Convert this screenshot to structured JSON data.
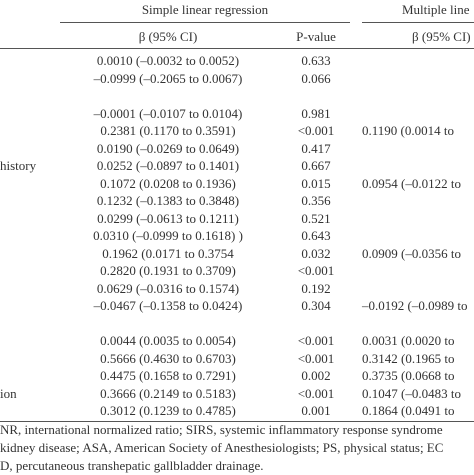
{
  "header": {
    "group1": "Simple linear regression",
    "group2": "Multiple line",
    "col1": "β (95% CI)",
    "col2": "P-value",
    "col3": "β (95% CI)"
  },
  "groups": [
    {
      "rows": [
        [
          null,
          "0.0010 (–0.0032 to 0.0052)",
          "0.633",
          null
        ],
        [
          null,
          "–0.0999 (–0.2065 to 0.0067)",
          "0.066",
          null
        ]
      ]
    },
    {
      "rows": [
        [
          null,
          "–0.0001 (–0.0107 to 0.0104)",
          "0.981",
          null
        ],
        [
          null,
          "0.2381 (0.1170 to 0.3591)",
          "<0.001",
          "0.1190 (0.0014 to"
        ],
        [
          null,
          "0.0190 (–0.0269 to 0.0649)",
          "0.417",
          null
        ],
        [
          "history",
          "0.0252 (–0.0897 to 0.1401)",
          "0.667",
          null
        ],
        [
          null,
          "0.1072 (0.0208 to 0.1936)",
          "0.015",
          "0.0954 (–0.0122 to"
        ],
        [
          null,
          "0.1232 (–0.1383 to 0.3848)",
          "0.356",
          null
        ],
        [
          null,
          "0.0299 (–0.0613 to 0.1211)",
          "0.521",
          null
        ],
        [
          null,
          "0.0310 (–0.0999 to 0.1618) )",
          "0.643",
          null
        ],
        [
          null,
          "0.1962 (0.0171 to 0.3754",
          "0.032",
          "0.0909 (–0.0356 to"
        ],
        [
          null,
          "0.2820 (0.1931 to 0.3709)",
          "<0.001",
          null
        ],
        [
          null,
          "0.0629 (–0.0316 to 0.1574)",
          "0.192",
          null
        ],
        [
          null,
          "–0.0467 (–0.1358 to 0.0424)",
          "0.304",
          "–0.0192 (–0.0989 to"
        ]
      ]
    },
    {
      "rows": [
        [
          null,
          "0.0044 (0.0035 to 0.0054)",
          "<0.001",
          "0.0031 (0.0020 to"
        ],
        [
          null,
          "0.5666 (0.4630 to 0.6703)",
          "<0.001",
          "0.3142 (0.1965 to"
        ],
        [
          null,
          "0.4475 (0.1658 to 0.7291)",
          "0.002",
          "0.3735 (0.0668 to"
        ],
        [
          "ion",
          "0.3666 (0.2149 to 0.5183)",
          "<0.001",
          "0.1047 (–0.0483 to"
        ],
        [
          null,
          "0.3012 (0.1239 to 0.4785)",
          "0.001",
          "0.1864 (0.0491 to"
        ]
      ]
    }
  ],
  "footnotes": [
    "NR, international normalized ratio; SIRS, systemic inflammatory response syndrome",
    "kidney disease; ASA, American Society of Anesthesiologists; PS, physical status; EC",
    "D, percutaneous transhepatic gallbladder drainage."
  ]
}
